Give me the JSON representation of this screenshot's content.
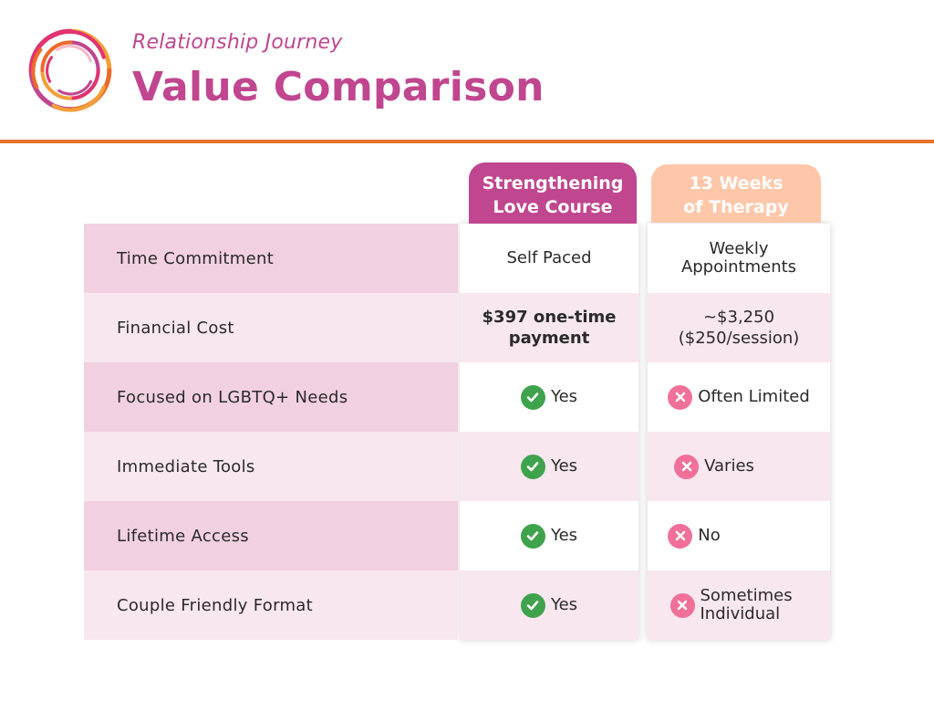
{
  "header": {
    "subtitle": "Relationship Journey",
    "title": "Value Comparison"
  },
  "colors": {
    "brand_pink": "#c0468f",
    "accent_orange": "#e8742b",
    "therapy_peach": "#ffc7a9",
    "check_green": "#3fa34d",
    "cross_pink": "#f0709a"
  },
  "columns": {
    "course": "Strengthening Love Course",
    "course_line1": "Strengthening",
    "course_line2": "Love Course",
    "therapy_line1": "13 Weeks",
    "therapy_line2": "of Therapy"
  },
  "rows": [
    {
      "label": "Time Commitment",
      "course": "Self Paced",
      "therapy": "Weekly Appointments"
    },
    {
      "label": "Financial Cost",
      "course": "$397 one-time payment",
      "therapy": "~$3,250 ($250/session)"
    },
    {
      "label": "Focused on LGBTQ+ Needs",
      "course": "Yes",
      "course_icon": "check-icon",
      "therapy": "Often Limited",
      "therapy_icon": "cross-icon"
    },
    {
      "label": "Immediate Tools",
      "course": "Yes",
      "course_icon": "check-icon",
      "therapy": "Varies",
      "therapy_icon": "cross-icon"
    },
    {
      "label": "Lifetime Access",
      "course": "Yes",
      "course_icon": "check-icon",
      "therapy": "No",
      "therapy_icon": "cross-icon"
    },
    {
      "label": "Couple Friendly Format",
      "course": "Yes",
      "course_icon": "check-icon",
      "therapy": "Sometimes Individual",
      "therapy_icon": "cross-icon"
    }
  ]
}
